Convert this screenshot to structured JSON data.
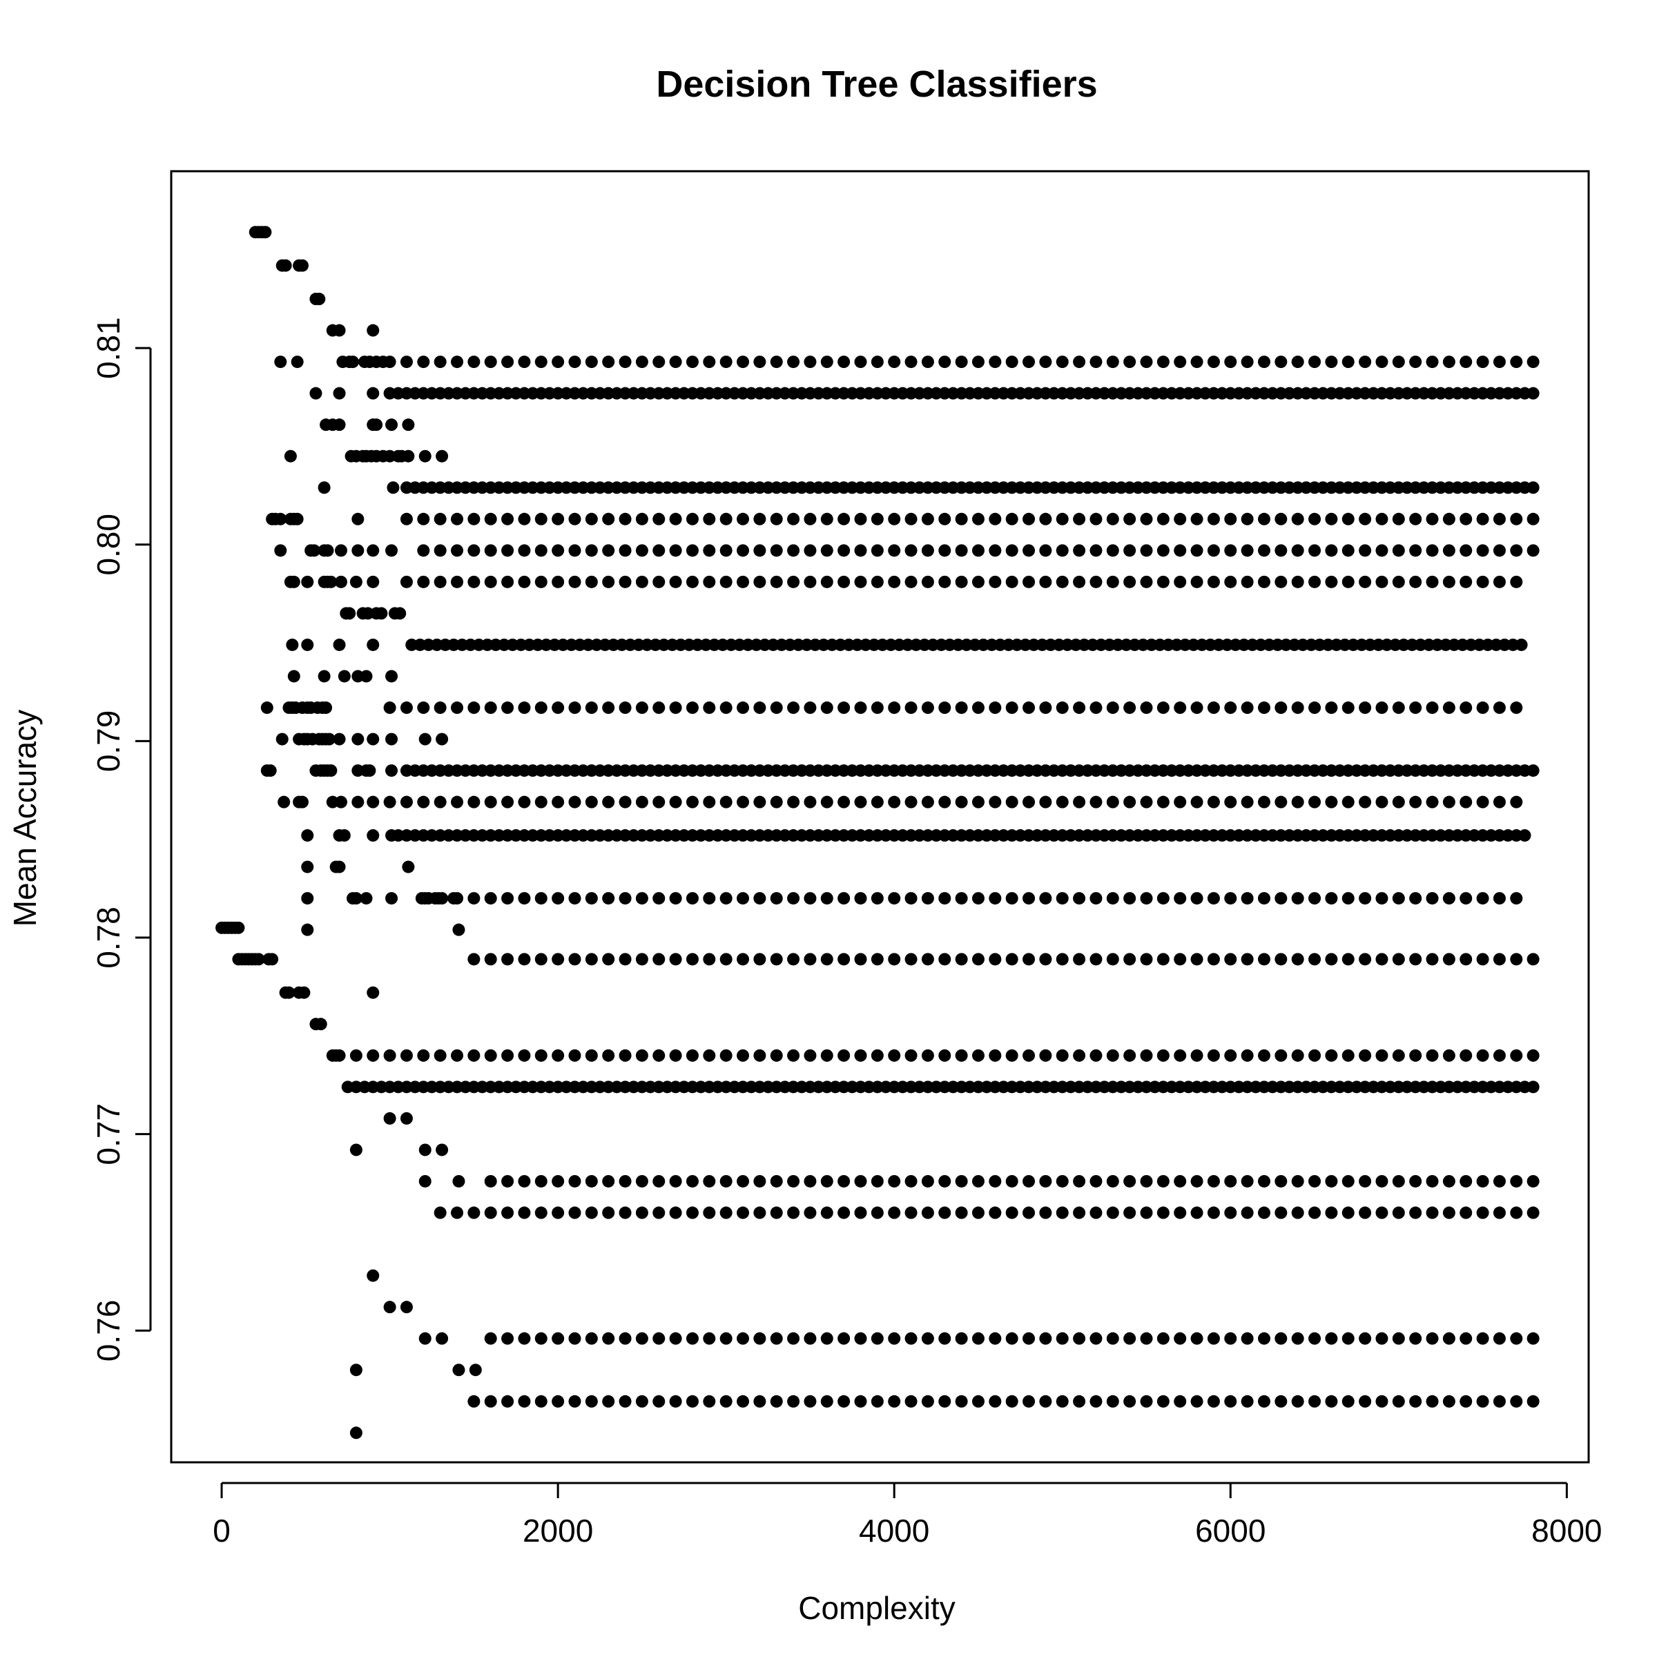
{
  "chart_data": {
    "type": "scatter",
    "title": "Decision Tree Classifiers",
    "xlabel": "Complexity",
    "ylabel": "Mean Accuracy",
    "xlim": [
      -300,
      8130
    ],
    "ylim": [
      0.7533,
      0.819
    ],
    "xticks": [
      0,
      2000,
      4000,
      6000,
      8000
    ],
    "xtick_labels": [
      "0",
      "2000",
      "4000",
      "6000",
      "8000"
    ],
    "yticks": [
      0.76,
      0.77,
      0.78,
      0.79,
      0.8,
      0.81
    ],
    "ytick_labels": [
      "0.76",
      "0.77",
      "0.78",
      "0.79",
      "0.80",
      "0.81"
    ],
    "grid": false,
    "marker_color": "#000000",
    "series": [
      {
        "points": [
          [
            0,
            0.7805
          ],
          [
            20,
            0.7805
          ],
          [
            40,
            0.7805
          ],
          [
            60,
            0.7805
          ],
          [
            80,
            0.7805
          ],
          [
            100,
            0.7805
          ],
          [
            100,
            0.7789
          ],
          [
            120,
            0.7789
          ],
          [
            140,
            0.7789
          ],
          [
            160,
            0.7789
          ],
          [
            180,
            0.7789
          ],
          [
            200,
            0.7789
          ],
          [
            220,
            0.7789
          ],
          [
            280,
            0.7789
          ],
          [
            300,
            0.7789
          ],
          [
            200,
            0.8159
          ],
          [
            220,
            0.8159
          ],
          [
            240,
            0.8159
          ],
          [
            260,
            0.8159
          ],
          [
            360,
            0.8142
          ],
          [
            380,
            0.8142
          ],
          [
            460,
            0.8142
          ],
          [
            480,
            0.8142
          ],
          [
            560,
            0.8125
          ],
          [
            580,
            0.8125
          ],
          [
            660,
            0.8109
          ],
          [
            700,
            0.8109
          ],
          [
            900,
            0.8109
          ],
          [
            350,
            0.8093
          ],
          [
            450,
            0.8093
          ],
          [
            720,
            0.8093
          ],
          [
            760,
            0.8093
          ],
          [
            780,
            0.8093
          ],
          [
            850,
            0.8093
          ],
          [
            880,
            0.8093
          ],
          [
            920,
            0.8093
          ],
          [
            960,
            0.8093
          ],
          [
            560,
            0.8077
          ],
          [
            700,
            0.8077
          ],
          [
            900,
            0.8077
          ],
          [
            620,
            0.8061
          ],
          [
            660,
            0.8061
          ],
          [
            700,
            0.8061
          ],
          [
            900,
            0.8061
          ],
          [
            920,
            0.8061
          ],
          [
            1010,
            0.8061
          ],
          [
            1110,
            0.8061
          ],
          [
            410,
            0.8045
          ],
          [
            770,
            0.8045
          ],
          [
            800,
            0.8045
          ],
          [
            840,
            0.8045
          ],
          [
            860,
            0.8045
          ],
          [
            890,
            0.8045
          ],
          [
            920,
            0.8045
          ],
          [
            960,
            0.8045
          ],
          [
            1000,
            0.8045
          ],
          [
            1050,
            0.8045
          ],
          [
            1070,
            0.8045
          ],
          [
            1110,
            0.8045
          ],
          [
            1210,
            0.8045
          ],
          [
            1310,
            0.8045
          ],
          [
            610,
            0.8029
          ],
          [
            1020,
            0.8029
          ],
          [
            300,
            0.8013
          ],
          [
            320,
            0.8013
          ],
          [
            350,
            0.8013
          ],
          [
            410,
            0.8013
          ],
          [
            430,
            0.8013
          ],
          [
            450,
            0.8013
          ],
          [
            810,
            0.8013
          ],
          [
            350,
            0.7997
          ],
          [
            530,
            0.7997
          ],
          [
            550,
            0.7997
          ],
          [
            610,
            0.7997
          ],
          [
            630,
            0.7997
          ],
          [
            710,
            0.7997
          ],
          [
            810,
            0.7997
          ],
          [
            900,
            0.7997
          ],
          [
            1010,
            0.7997
          ],
          [
            410,
            0.7981
          ],
          [
            430,
            0.7981
          ],
          [
            510,
            0.7981
          ],
          [
            610,
            0.7981
          ],
          [
            630,
            0.7981
          ],
          [
            650,
            0.7981
          ],
          [
            710,
            0.7981
          ],
          [
            800,
            0.7981
          ],
          [
            900,
            0.7981
          ],
          [
            740,
            0.7965
          ],
          [
            760,
            0.7965
          ],
          [
            840,
            0.7965
          ],
          [
            870,
            0.7965
          ],
          [
            920,
            0.7965
          ],
          [
            950,
            0.7965
          ],
          [
            1030,
            0.7965
          ],
          [
            1060,
            0.7965
          ],
          [
            420,
            0.7949
          ],
          [
            510,
            0.7949
          ],
          [
            700,
            0.7949
          ],
          [
            900,
            0.7949
          ],
          [
            430,
            0.7933
          ],
          [
            610,
            0.7933
          ],
          [
            730,
            0.7933
          ],
          [
            810,
            0.7933
          ],
          [
            860,
            0.7933
          ],
          [
            1010,
            0.7933
          ],
          [
            270,
            0.7917
          ],
          [
            400,
            0.7917
          ],
          [
            420,
            0.7917
          ],
          [
            440,
            0.7917
          ],
          [
            480,
            0.7917
          ],
          [
            510,
            0.7917
          ],
          [
            530,
            0.7917
          ],
          [
            570,
            0.7917
          ],
          [
            600,
            0.7917
          ],
          [
            620,
            0.7917
          ],
          [
            1000,
            0.7917
          ],
          [
            360,
            0.7901
          ],
          [
            460,
            0.7901
          ],
          [
            490,
            0.7901
          ],
          [
            510,
            0.7901
          ],
          [
            540,
            0.7901
          ],
          [
            580,
            0.7901
          ],
          [
            600,
            0.7901
          ],
          [
            620,
            0.7901
          ],
          [
            640,
            0.7901
          ],
          [
            700,
            0.7901
          ],
          [
            810,
            0.7901
          ],
          [
            900,
            0.7901
          ],
          [
            1010,
            0.7901
          ],
          [
            1210,
            0.7901
          ],
          [
            1310,
            0.7901
          ],
          [
            270,
            0.7885
          ],
          [
            290,
            0.7885
          ],
          [
            560,
            0.7885
          ],
          [
            590,
            0.7885
          ],
          [
            610,
            0.7885
          ],
          [
            630,
            0.7885
          ],
          [
            650,
            0.7885
          ],
          [
            810,
            0.7885
          ],
          [
            860,
            0.7885
          ],
          [
            880,
            0.7885
          ],
          [
            1010,
            0.7885
          ],
          [
            370,
            0.7869
          ],
          [
            460,
            0.7869
          ],
          [
            480,
            0.7869
          ],
          [
            660,
            0.7869
          ],
          [
            710,
            0.7869
          ],
          [
            810,
            0.7869
          ],
          [
            510,
            0.7852
          ],
          [
            700,
            0.7852
          ],
          [
            730,
            0.7852
          ],
          [
            900,
            0.7852
          ],
          [
            1010,
            0.7852
          ],
          [
            510,
            0.7836
          ],
          [
            680,
            0.7836
          ],
          [
            700,
            0.7836
          ],
          [
            1110,
            0.7836
          ],
          [
            510,
            0.782
          ],
          [
            780,
            0.782
          ],
          [
            800,
            0.782
          ],
          [
            860,
            0.782
          ],
          [
            1010,
            0.782
          ],
          [
            1190,
            0.782
          ],
          [
            1210,
            0.782
          ],
          [
            1230,
            0.782
          ],
          [
            1270,
            0.782
          ],
          [
            1290,
            0.782
          ],
          [
            1310,
            0.782
          ],
          [
            1380,
            0.782
          ],
          [
            510,
            0.7804
          ],
          [
            1410,
            0.7804
          ],
          [
            380,
            0.7772
          ],
          [
            400,
            0.7772
          ],
          [
            460,
            0.7772
          ],
          [
            490,
            0.7772
          ],
          [
            900,
            0.7772
          ],
          [
            560,
            0.7756
          ],
          [
            590,
            0.7756
          ],
          [
            660,
            0.774
          ],
          [
            680,
            0.774
          ],
          [
            800,
            0.7692
          ],
          [
            1000,
            0.7708
          ],
          [
            1100,
            0.7708
          ],
          [
            1210,
            0.7692
          ],
          [
            1310,
            0.7692
          ],
          [
            1210,
            0.7676
          ],
          [
            1410,
            0.7676
          ],
          [
            900,
            0.7628
          ],
          [
            1000,
            0.7612
          ],
          [
            1100,
            0.7612
          ],
          [
            1210,
            0.7596
          ],
          [
            1310,
            0.7596
          ],
          [
            800,
            0.758
          ],
          [
            1410,
            0.758
          ],
          [
            1510,
            0.758
          ],
          [
            800,
            0.7548
          ]
        ],
        "rows": [
          {
            "y": 0.8093,
            "start": 1000,
            "end": 7800,
            "step": 100
          },
          {
            "y": 0.8077,
            "start": 1000,
            "end": 7810,
            "step": 50
          },
          {
            "y": 0.8029,
            "start": 1100,
            "end": 7810,
            "step": 50
          },
          {
            "y": 0.8013,
            "start": 1100,
            "end": 7810,
            "step": 100
          },
          {
            "y": 0.7997,
            "start": 1200,
            "end": 7810,
            "step": 100
          },
          {
            "y": 0.7981,
            "start": 1100,
            "end": 7750,
            "step": 100
          },
          {
            "y": 0.7949,
            "start": 1130,
            "end": 7770,
            "step": 50
          },
          {
            "y": 0.7917,
            "start": 1100,
            "end": 7750,
            "step": 100
          },
          {
            "y": 0.7885,
            "start": 1100,
            "end": 7810,
            "step": 50
          },
          {
            "y": 0.7869,
            "start": 900,
            "end": 7750,
            "step": 100
          },
          {
            "y": 0.7852,
            "start": 1050,
            "end": 7780,
            "step": 50
          },
          {
            "y": 0.782,
            "start": 1400,
            "end": 7790,
            "step": 100
          },
          {
            "y": 0.7789,
            "start": 1500,
            "end": 7800,
            "step": 100
          },
          {
            "y": 0.774,
            "start": 700,
            "end": 7800,
            "step": 100
          },
          {
            "y": 0.7724,
            "start": 750,
            "end": 7800,
            "step": 50
          },
          {
            "y": 0.7676,
            "start": 1600,
            "end": 7800,
            "step": 100
          },
          {
            "y": 0.766,
            "start": 1300,
            "end": 7800,
            "step": 100
          },
          {
            "y": 0.7596,
            "start": 1600,
            "end": 7800,
            "step": 100
          },
          {
            "y": 0.7564,
            "start": 1500,
            "end": 7800,
            "step": 100
          }
        ]
      }
    ]
  }
}
